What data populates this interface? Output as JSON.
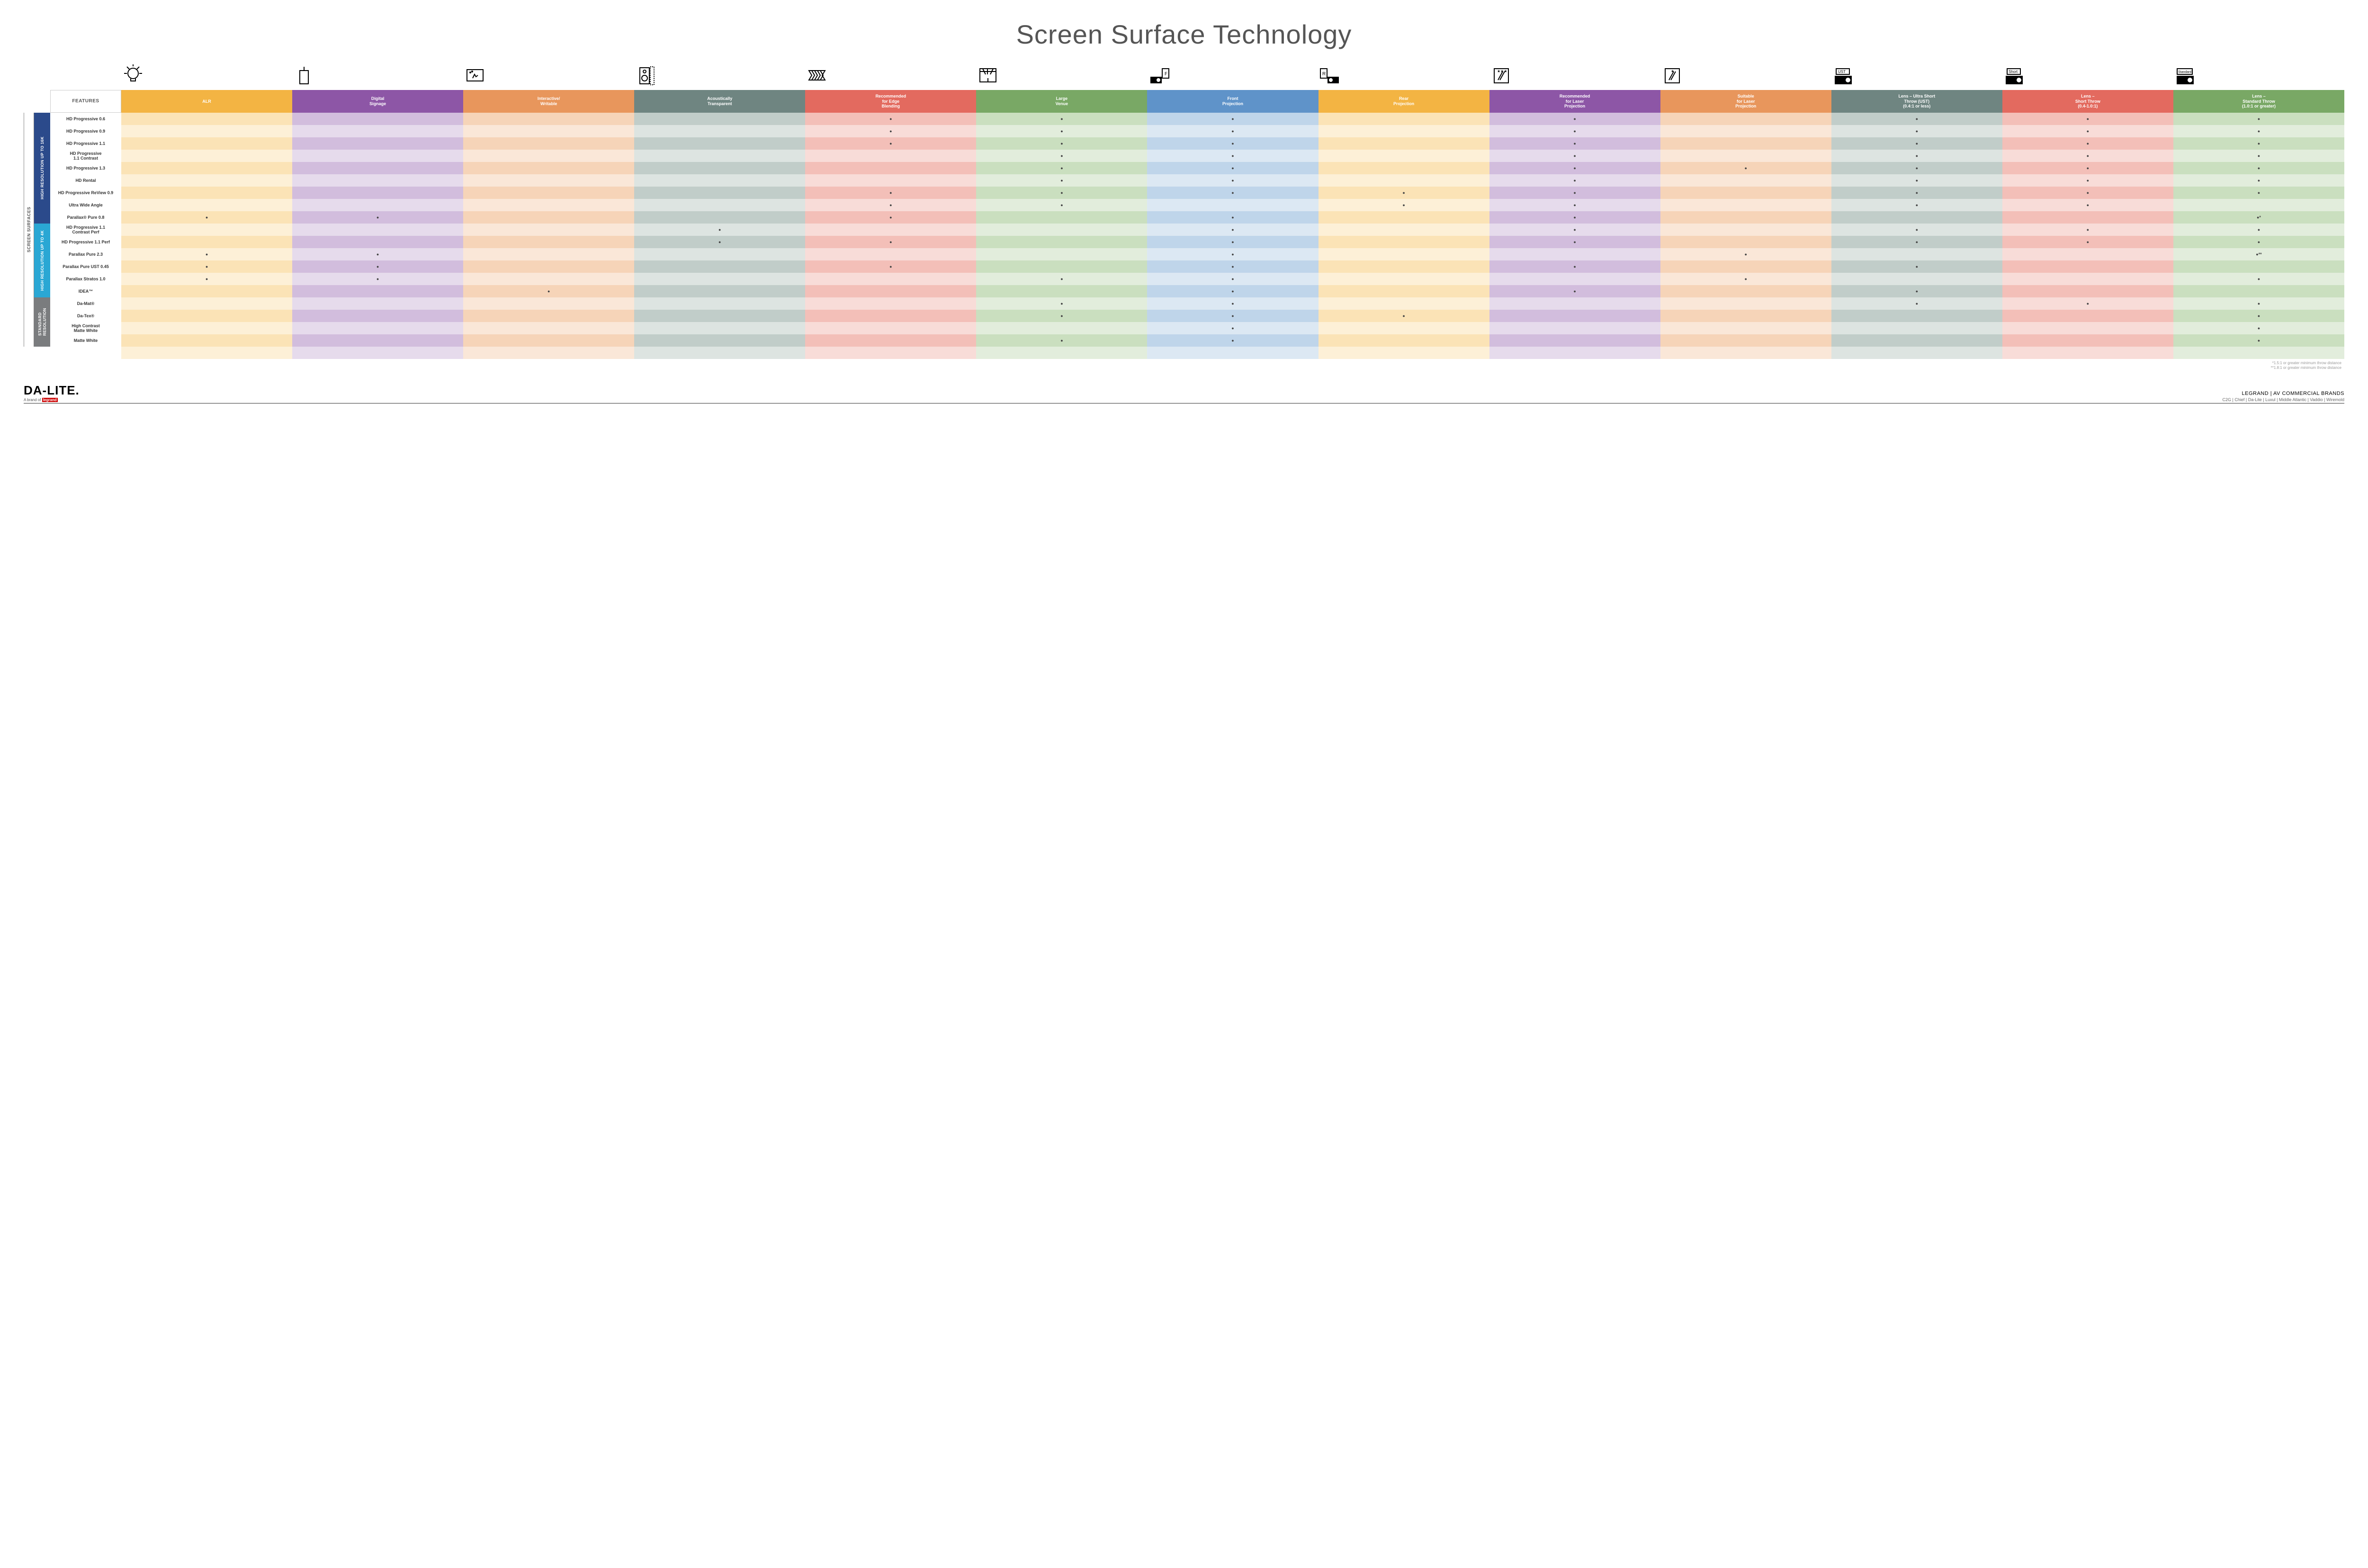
{
  "title": "Screen Surface Technology",
  "columns": [
    {
      "key": "alr",
      "label": "ALR",
      "color": "#f3b443",
      "light": "#fbe3b6",
      "icon": "bulb"
    },
    {
      "key": "signage",
      "label": "Digital\nSignage",
      "color": "#8d56a6",
      "light": "#d2bddd",
      "icon": "sign"
    },
    {
      "key": "interactive",
      "label": "Interactive/\nWritable",
      "color": "#e8965c",
      "light": "#f6d4b8",
      "icon": "touch"
    },
    {
      "key": "acoustic",
      "label": "Acoustically\nTransparent",
      "color": "#6f8581",
      "light": "#c1cdc9",
      "icon": "speaker"
    },
    {
      "key": "blend",
      "label": "Recommended\nfor Edge\nBlending",
      "color": "#e36a5f",
      "light": "#f3bfb8",
      "icon": "blend"
    },
    {
      "key": "venue",
      "label": "Large\nVenue",
      "color": "#79a865",
      "light": "#cadfbf",
      "icon": "venue"
    },
    {
      "key": "front",
      "label": "Front\nProjection",
      "color": "#5f93c9",
      "light": "#bfd5ea",
      "icon": "front"
    },
    {
      "key": "rear",
      "label": "Rear\nProjection",
      "color": "#f3b443",
      "light": "#fbe3b6",
      "icon": "rear"
    },
    {
      "key": "laserR",
      "label": "Recommended\nfor Laser\nProjection",
      "color": "#8d56a6",
      "light": "#d2bddd",
      "icon": "laserR"
    },
    {
      "key": "laserS",
      "label": "Suitable\nfor Laser\nProjection",
      "color": "#e8965c",
      "light": "#f6d4b8",
      "icon": "laserS"
    },
    {
      "key": "ust",
      "label": "Lens – Ultra Short\nThrow (UST)\n(0.4:1 or less)",
      "color": "#6f8581",
      "light": "#c1cdc9",
      "icon": "ust"
    },
    {
      "key": "short",
      "label": "Lens –\nShort Throw\n(0.4-1.0:1)",
      "color": "#e36a5f",
      "light": "#f3bfb8",
      "icon": "short"
    },
    {
      "key": "std",
      "label": "Lens –\nStandard Throw\n(1.0:1 or greater)",
      "color": "#79a865",
      "light": "#cadfbf",
      "icon": "stdp"
    }
  ],
  "featuresLabel": "FEATURES",
  "sideOuter": "SCREEN SURFACES",
  "groups": [
    {
      "label": "HIGH RESOLUTION UP TO 16K",
      "color": "#2b4a8b",
      "rows": 9
    },
    {
      "label": "HIGH RESOLUTION UP TO 4K",
      "color": "#2aa7d4",
      "rows": 6
    },
    {
      "label": "STANDARD\nRESOLUTION",
      "color": "#7a7c7e",
      "rows": 4
    }
  ],
  "rows": [
    {
      "label": "HD Progressive 0.6",
      "d": {
        "blend": 1,
        "venue": 1,
        "front": 1,
        "laserR": 1,
        "ust": 1,
        "short": 1,
        "std": 1
      }
    },
    {
      "label": "HD Progressive 0.9",
      "d": {
        "blend": 1,
        "venue": 1,
        "front": 1,
        "laserR": 1,
        "ust": 1,
        "short": 1,
        "std": 1
      }
    },
    {
      "label": "HD Progressive 1.1",
      "d": {
        "blend": 1,
        "venue": 1,
        "front": 1,
        "laserR": 1,
        "ust": 1,
        "short": 1,
        "std": 1
      }
    },
    {
      "label": "HD Progressive\n1.1 Contrast",
      "d": {
        "venue": 1,
        "front": 1,
        "laserR": 1,
        "ust": 1,
        "short": 1,
        "std": 1
      }
    },
    {
      "label": "HD Progressive 1.3",
      "d": {
        "venue": 1,
        "front": 1,
        "laserR": 1,
        "laserS": 1,
        "ust": 1,
        "short": 1,
        "std": 1
      }
    },
    {
      "label": "HD Rental",
      "d": {
        "venue": 1,
        "front": 1,
        "laserR": 1,
        "ust": 1,
        "short": 1,
        "std": 1
      }
    },
    {
      "label": "HD Progressive ReView 0.9",
      "d": {
        "blend": 1,
        "venue": 1,
        "front": 1,
        "rear": 1,
        "laserR": 1,
        "ust": 1,
        "short": 1,
        "std": 1
      }
    },
    {
      "label": "Ultra Wide Angle",
      "d": {
        "blend": 1,
        "venue": 1,
        "rear": 1,
        "laserR": 1,
        "ust": 1,
        "short": 1
      }
    },
    {
      "label": "Parallax® Pure 0.8",
      "d": {
        "alr": 1,
        "signage": 1,
        "blend": 1,
        "front": 1,
        "laserR": 1,
        "std": "●*"
      }
    },
    {
      "label": "HD Progressive 1.1\nContrast Perf",
      "d": {
        "acoustic": 1,
        "front": 1,
        "laserR": 1,
        "ust": 1,
        "short": 1,
        "std": 1
      }
    },
    {
      "label": "HD Progressive 1.1 Perf",
      "d": {
        "acoustic": 1,
        "blend": 1,
        "front": 1,
        "laserR": 1,
        "ust": 1,
        "short": 1,
        "std": 1
      }
    },
    {
      "label": "Parallax Pure 2.3",
      "d": {
        "alr": 1,
        "signage": 1,
        "front": 1,
        "laserS": 1,
        "std": "●**"
      }
    },
    {
      "label": "Parallax Pure UST 0.45",
      "d": {
        "alr": 1,
        "signage": 1,
        "blend": 1,
        "front": 1,
        "laserR": 1,
        "ust": 1
      }
    },
    {
      "label": "Parallax Stratos 1.0",
      "d": {
        "alr": 1,
        "signage": 1,
        "venue": 1,
        "front": 1,
        "laserS": 1,
        "std": 1
      }
    },
    {
      "label": "IDEA™",
      "d": {
        "interactive": 1,
        "front": 1,
        "laserR": 1,
        "ust": 1
      }
    },
    {
      "label": "Da-Mat®",
      "d": {
        "venue": 1,
        "front": 1,
        "ust": 1,
        "short": 1,
        "std": 1
      }
    },
    {
      "label": "Da-Tex®",
      "d": {
        "venue": 1,
        "front": 1,
        "rear": 1,
        "std": 1
      }
    },
    {
      "label": "High Contrast\nMatte White",
      "d": {
        "front": 1,
        "std": 1
      }
    },
    {
      "label": "Matte White",
      "d": {
        "venue": 1,
        "front": 1,
        "std": 1
      }
    }
  ],
  "footnotes": [
    "*1.5:1 or greater minimum throw distance",
    "**1.8:1 or greater minimum throw distance"
  ],
  "footer": {
    "brand": "DA-LITE.",
    "brandSubPrefix": "A brand of ",
    "brandSubLogo": "legrand",
    "rightLine1": "LEGRAND | AV COMMERCIAL BRANDS",
    "rightLine2": "C2G  |  Chief  |  Da-Lite  |  Luxul  |  Middle Atlantic  |  Vaddio  |  Wiremold"
  }
}
